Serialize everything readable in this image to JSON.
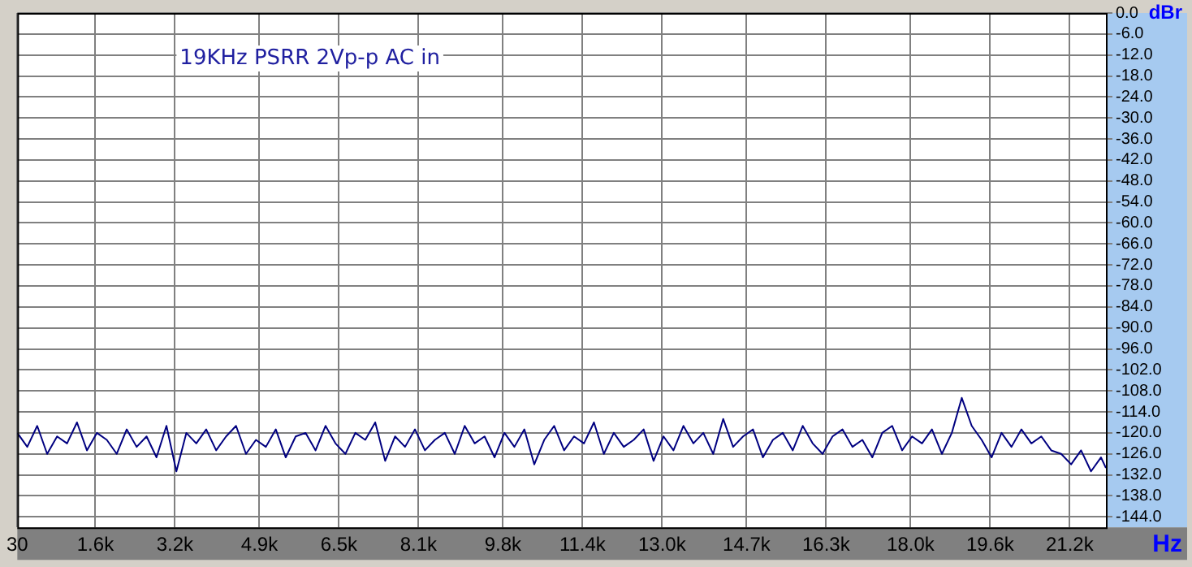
{
  "chart_data": {
    "type": "line",
    "title": "19KHz PSRR 2Vp-p AC in",
    "xlabel": "Hz",
    "ylabel": "dBr",
    "x": [
      30,
      230,
      430,
      630,
      830,
      1030,
      1230,
      1430,
      1630,
      1830,
      2030,
      2230,
      2430,
      2630,
      2830,
      3030,
      3230,
      3430,
      3630,
      3830,
      4030,
      4230,
      4430,
      4630,
      4830,
      5030,
      5230,
      5430,
      5630,
      5830,
      6030,
      6230,
      6430,
      6630,
      6830,
      7030,
      7230,
      7430,
      7630,
      7830,
      8030,
      8230,
      8430,
      8630,
      8830,
      9030,
      9230,
      9430,
      9630,
      9830,
      10030,
      10230,
      10430,
      10630,
      10830,
      11030,
      11230,
      11430,
      11630,
      11830,
      12030,
      12230,
      12430,
      12630,
      12830,
      13030,
      13230,
      13430,
      13630,
      13830,
      14030,
      14230,
      14430,
      14630,
      14830,
      15030,
      15230,
      15430,
      15630,
      15830,
      16030,
      16230,
      16430,
      16630,
      16830,
      17030,
      17230,
      17430,
      17630,
      17830,
      18030,
      18230,
      18430,
      18630,
      18830,
      19030,
      19230,
      19430,
      19630,
      19830,
      20030,
      20230,
      20430,
      20630,
      20830,
      21030,
      21230,
      21430,
      21630,
      21830,
      21930
    ],
    "series": [
      {
        "color": "#000080",
        "values": [
          -120,
          -124,
          -118,
          -126,
          -121,
          -123,
          -117,
          -125,
          -120,
          -122,
          -126,
          -119,
          -124,
          -121,
          -127,
          -118,
          -131,
          -120,
          -123,
          -119,
          -125,
          -121,
          -118,
          -126,
          -122,
          -124,
          -119,
          -127,
          -121,
          -120,
          -125,
          -118,
          -123,
          -126,
          -120,
          -122,
          -117,
          -128,
          -121,
          -124,
          -119,
          -125,
          -122,
          -120,
          -126,
          -118,
          -123,
          -121,
          -127,
          -120,
          -124,
          -119,
          -129,
          -122,
          -118,
          -125,
          -121,
          -123,
          -117,
          -126,
          -120,
          -124,
          -122,
          -119,
          -128,
          -121,
          -125,
          -118,
          -123,
          -120,
          -126,
          -116,
          -124,
          -121,
          -119,
          -127,
          -122,
          -120,
          -125,
          -118,
          -123,
          -126,
          -121,
          -119,
          -124,
          -122,
          -127,
          -120,
          -118,
          -125,
          -121,
          -123,
          -119,
          -126,
          -120,
          -110,
          -118,
          -122,
          -127,
          -120,
          -124,
          -119,
          -123,
          -121,
          -125,
          -126,
          -129,
          -125,
          -131,
          -127,
          -130
        ]
      }
    ],
    "xlim": [
      30,
      21930
    ],
    "xticks": [
      30,
      {
        "value": 1600,
        "label": "1.6k"
      },
      {
        "value": 3200,
        "label": "3.2k"
      },
      {
        "value": 4900,
        "label": "4.9k"
      },
      {
        "value": 6500,
        "label": "6.5k"
      },
      {
        "value": 8100,
        "label": "8.1k"
      },
      {
        "value": 9800,
        "label": "9.8k"
      },
      {
        "value": 11400,
        "label": "11.4k"
      },
      {
        "value": 13000,
        "label": "13.0k"
      },
      {
        "value": 14700,
        "label": "14.7k"
      },
      {
        "value": 16300,
        "label": "16.3k"
      },
      {
        "value": 18000,
        "label": "18.0k"
      },
      {
        "value": 19600,
        "label": "19.6k"
      },
      {
        "value": 21200,
        "label": "21.2k"
      }
    ],
    "ylim": [
      -147,
      0
    ],
    "yticks": [
      {
        "value": 0,
        "label": "0.0"
      },
      {
        "value": -6,
        "label": "-6.0"
      },
      {
        "value": -12,
        "label": "-12.0"
      },
      {
        "value": -18,
        "label": "-18.0"
      },
      {
        "value": -24,
        "label": "-24.0"
      },
      {
        "value": -30,
        "label": "-30.0"
      },
      {
        "value": -36,
        "label": "-36.0"
      },
      {
        "value": -42,
        "label": "-42.0"
      },
      {
        "value": -48,
        "label": "-48.0"
      },
      {
        "value": -54,
        "label": "-54.0"
      },
      {
        "value": -60,
        "label": "-60.0"
      },
      {
        "value": -66,
        "label": "-66.0"
      },
      {
        "value": -72,
        "label": "-72.0"
      },
      {
        "value": -78,
        "label": "-78.0"
      },
      {
        "value": -84,
        "label": "-84.0"
      },
      {
        "value": -90,
        "label": "-90.0"
      },
      {
        "value": -96,
        "label": "-96.0"
      },
      {
        "value": -102,
        "label": "-102.0"
      },
      {
        "value": -108,
        "label": "-108.0"
      },
      {
        "value": -114,
        "label": "-114.0"
      },
      {
        "value": -120,
        "label": "-120.0"
      },
      {
        "value": -126,
        "label": "-126.0"
      },
      {
        "value": -132,
        "label": "-132.0"
      },
      {
        "value": -138,
        "label": "-138.0"
      },
      {
        "value": -144,
        "label": "-144.0"
      }
    ],
    "grid": true,
    "legend": false,
    "marker": "none",
    "line_style": "solid"
  }
}
